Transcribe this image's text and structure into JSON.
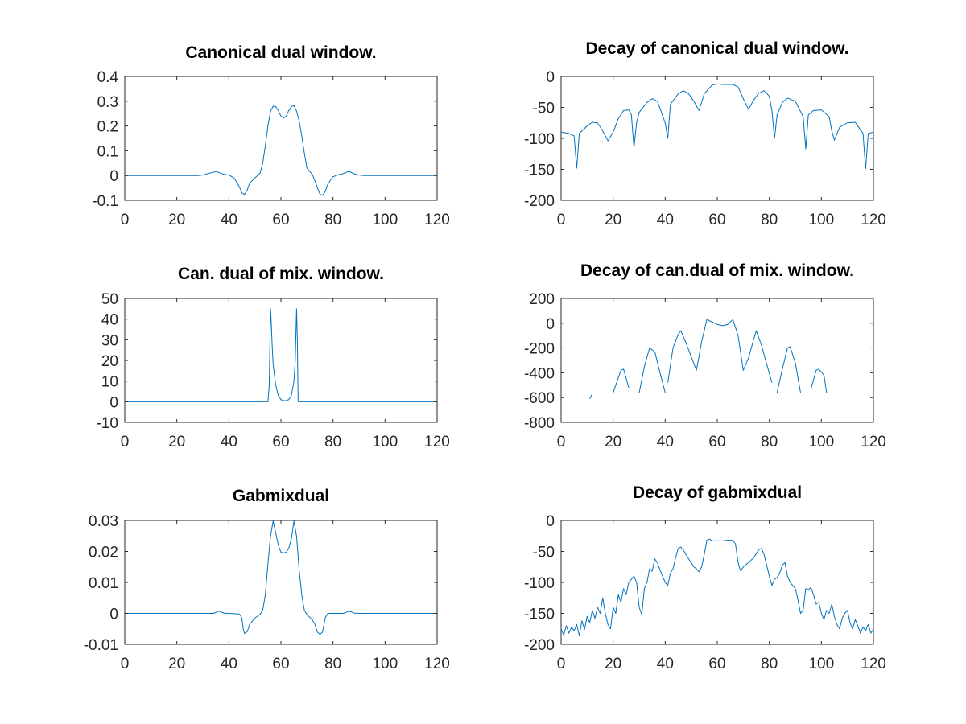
{
  "figure": {
    "background": "#ffffff",
    "line_color": "#0072bd",
    "axis_color": "#262626"
  },
  "chart_data": [
    {
      "type": "line",
      "title": "Canonical dual window.",
      "xlim": [
        0,
        120
      ],
      "ylim": [
        -0.1,
        0.4
      ],
      "xticks": [
        0,
        20,
        40,
        60,
        80,
        100,
        120
      ],
      "xtick_labels": [
        "0",
        "20",
        "40",
        "60",
        "80",
        "100",
        "120"
      ],
      "yticks": [
        -0.1,
        0,
        0.1,
        0.2,
        0.3,
        0.4
      ],
      "ytick_labels": [
        "-0.1",
        "0",
        "0.1",
        "0.2",
        "0.3",
        "0.4"
      ],
      "series": [
        {
          "x": [
            0,
            10,
            20,
            28,
            30,
            32,
            34,
            35,
            36,
            38,
            40,
            42,
            44,
            45,
            46,
            47,
            48,
            50,
            52,
            53,
            54,
            55,
            56,
            57,
            58,
            59,
            60,
            61,
            62,
            63,
            64,
            65,
            66,
            67,
            68,
            69,
            70,
            72,
            73,
            74,
            75,
            76,
            77,
            78,
            80,
            82,
            84,
            85,
            86,
            87,
            88,
            90,
            92,
            94,
            100,
            110,
            120
          ],
          "y": [
            0,
            0,
            0,
            0,
            0.002,
            0.008,
            0.013,
            0.016,
            0.013,
            0.005,
            0.002,
            -0.01,
            -0.045,
            -0.07,
            -0.077,
            -0.06,
            -0.03,
            -0.01,
            0.01,
            0.05,
            0.12,
            0.2,
            0.26,
            0.28,
            0.278,
            0.262,
            0.24,
            0.232,
            0.24,
            0.262,
            0.278,
            0.282,
            0.26,
            0.22,
            0.16,
            0.09,
            0.03,
            0.005,
            -0.02,
            -0.05,
            -0.075,
            -0.08,
            -0.065,
            -0.035,
            -0.005,
            0.003,
            0.008,
            0.013,
            0.016,
            0.013,
            0.007,
            0.002,
            0,
            0,
            0,
            0,
            0
          ]
        }
      ]
    },
    {
      "type": "line",
      "title": "Decay of canonical dual window.",
      "xlim": [
        0,
        120
      ],
      "ylim": [
        -200,
        0
      ],
      "xticks": [
        0,
        20,
        40,
        60,
        80,
        100,
        120
      ],
      "xtick_labels": [
        "0",
        "20",
        "40",
        "60",
        "80",
        "100",
        "120"
      ],
      "yticks": [
        -200,
        -150,
        -100,
        -50,
        0
      ],
      "ytick_labels": [
        "-200",
        "-150",
        "-100",
        "-50",
        "0"
      ],
      "series": [
        {
          "x": [
            0,
            3,
            5,
            6,
            7,
            10,
            12,
            14,
            16,
            18,
            20,
            22,
            24,
            26,
            27,
            28,
            29,
            30,
            33,
            35,
            37,
            40,
            41,
            42,
            45,
            47,
            49,
            51,
            53,
            55,
            58,
            60,
            62,
            64,
            66,
            68,
            70,
            72,
            74,
            76,
            78,
            80,
            81,
            82,
            83,
            85,
            87,
            90,
            93,
            94,
            95,
            97,
            100,
            103,
            104,
            105,
            107,
            110,
            113,
            115,
            116,
            117,
            118,
            120
          ],
          "y": [
            -90,
            -92,
            -96,
            -148,
            -92,
            -80,
            -74,
            -75,
            -88,
            -104,
            -90,
            -68,
            -55,
            -54,
            -62,
            -115,
            -75,
            -58,
            -42,
            -36,
            -40,
            -75,
            -100,
            -45,
            -28,
            -23,
            -28,
            -40,
            -55,
            -28,
            -14,
            -12,
            -13,
            -13,
            -13,
            -17,
            -36,
            -53,
            -38,
            -27,
            -23,
            -32,
            -55,
            -100,
            -62,
            -42,
            -35,
            -40,
            -65,
            -117,
            -62,
            -55,
            -54,
            -65,
            -88,
            -103,
            -82,
            -75,
            -74,
            -86,
            -92,
            -149,
            -92,
            -90
          ]
        }
      ]
    },
    {
      "type": "line",
      "title": "Can. dual of mix. window.",
      "xlim": [
        0,
        120
      ],
      "ylim": [
        -10,
        50
      ],
      "xticks": [
        0,
        20,
        40,
        60,
        80,
        100,
        120
      ],
      "xtick_labels": [
        "0",
        "20",
        "40",
        "60",
        "80",
        "100",
        "120"
      ],
      "yticks": [
        -10,
        0,
        10,
        20,
        30,
        40,
        50
      ],
      "ytick_labels": [
        "-10",
        "0",
        "10",
        "20",
        "30",
        "40",
        "50"
      ],
      "series": [
        {
          "x": [
            0,
            20,
            40,
            55,
            55.5,
            56,
            56.3,
            56.6,
            57,
            58,
            59,
            60,
            61,
            62,
            63,
            64,
            65,
            65.5,
            66,
            66.3,
            66.6,
            67,
            80,
            100,
            120
          ],
          "y": [
            0,
            0,
            0,
            0,
            8,
            45,
            38,
            28,
            18,
            8,
            3,
            1,
            0.5,
            0.5,
            1,
            3,
            10,
            20,
            45,
            30,
            0,
            0,
            0,
            0,
            0
          ]
        }
      ]
    },
    {
      "type": "line",
      "title": "Decay of can.dual of mix. window.",
      "xlim": [
        0,
        120
      ],
      "ylim": [
        -800,
        200
      ],
      "xticks": [
        0,
        20,
        40,
        60,
        80,
        100,
        120
      ],
      "xtick_labels": [
        "0",
        "20",
        "40",
        "60",
        "80",
        "100",
        "120"
      ],
      "yticks": [
        -800,
        -600,
        -400,
        -200,
        0,
        200
      ],
      "ytick_labels": [
        "-800",
        "-600",
        "-400",
        "-200",
        "0",
        "200"
      ],
      "series": [
        {
          "x": [
            11,
            12
          ],
          "y": [
            -610,
            -570
          ]
        },
        {
          "x": [
            20,
            22,
            23,
            24,
            26
          ],
          "y": [
            -560,
            -440,
            -380,
            -370,
            -520
          ]
        },
        {
          "x": [
            30,
            32,
            34,
            36,
            38,
            40
          ],
          "y": [
            -560,
            -350,
            -200,
            -230,
            -400,
            -560
          ]
        },
        {
          "x": [
            41,
            43,
            45,
            46,
            48,
            50,
            52,
            54,
            56,
            58,
            60,
            62,
            64,
            66,
            68,
            70,
            72,
            74,
            75,
            77,
            79,
            81
          ],
          "y": [
            -480,
            -200,
            -90,
            -60,
            -160,
            -270,
            -380,
            -150,
            30,
            10,
            -10,
            -20,
            -10,
            30,
            -100,
            -380,
            -280,
            -130,
            -60,
            -180,
            -330,
            -480
          ]
        },
        {
          "x": [
            83,
            85,
            87,
            88,
            90,
            92
          ],
          "y": [
            -560,
            -370,
            -200,
            -190,
            -320,
            -560
          ]
        },
        {
          "x": [
            96,
            98,
            99,
            101,
            102
          ],
          "y": [
            -530,
            -380,
            -370,
            -420,
            -560
          ]
        }
      ]
    },
    {
      "type": "line",
      "title": "Gabmixdual",
      "xlim": [
        0,
        120
      ],
      "ylim": [
        -0.01,
        0.03
      ],
      "xticks": [
        0,
        20,
        40,
        60,
        80,
        100,
        120
      ],
      "xtick_labels": [
        "0",
        "20",
        "40",
        "60",
        "80",
        "100",
        "120"
      ],
      "yticks": [
        -0.01,
        0,
        0.01,
        0.02,
        0.03
      ],
      "ytick_labels": [
        "-0.01",
        "0",
        "0.01",
        "0.02",
        "0.03"
      ],
      "series": [
        {
          "x": [
            0,
            20,
            34,
            35,
            36,
            37,
            38,
            40,
            44,
            45,
            45.5,
            46,
            47,
            48,
            50,
            52,
            53,
            54,
            55,
            56,
            57,
            58,
            59,
            60,
            61,
            62,
            63,
            64,
            65,
            66,
            67,
            68,
            69,
            70,
            72,
            73,
            74,
            75,
            76,
            77,
            78,
            80,
            84,
            85,
            86,
            87,
            88,
            90,
            100,
            120
          ],
          "y": [
            0,
            0,
            0,
            0.0003,
            0.0007,
            0.0004,
            0.0001,
            0,
            -0.0002,
            -0.0015,
            -0.005,
            -0.0065,
            -0.006,
            -0.0035,
            -0.0015,
            -0.0003,
            0.001,
            0.006,
            0.016,
            0.025,
            0.0298,
            0.026,
            0.022,
            0.0197,
            0.0195,
            0.0197,
            0.021,
            0.024,
            0.0298,
            0.025,
            0.014,
            0.006,
            0.001,
            -0.0004,
            -0.002,
            -0.0035,
            -0.006,
            -0.0068,
            -0.006,
            -0.0015,
            0,
            0,
            0,
            0.0003,
            0.0007,
            0.0005,
            0.0001,
            0,
            0,
            0
          ]
        }
      ]
    },
    {
      "type": "line",
      "title": "Decay of gabmixdual",
      "xlim": [
        0,
        120
      ],
      "ylim": [
        -200,
        0
      ],
      "xticks": [
        0,
        20,
        40,
        60,
        80,
        100,
        120
      ],
      "xtick_labels": [
        "0",
        "20",
        "40",
        "60",
        "80",
        "100",
        "120"
      ],
      "yticks": [
        -200,
        -150,
        -100,
        -50,
        0
      ],
      "ytick_labels": [
        "-200",
        "-150",
        "-100",
        "-50",
        "0"
      ],
      "series": [
        {
          "x": [
            0,
            1,
            2,
            3,
            4,
            5,
            6,
            7,
            8,
            9,
            10,
            11,
            12,
            13,
            14,
            15,
            16,
            17,
            18,
            19,
            20,
            21,
            22,
            23,
            24,
            25,
            26,
            27,
            28,
            29,
            30,
            31,
            32,
            33,
            34,
            35,
            36,
            37,
            38,
            39,
            40,
            41,
            42,
            43,
            44,
            45,
            46,
            47,
            48,
            49,
            50,
            51,
            52,
            53,
            54,
            55,
            56,
            57,
            58,
            60,
            62,
            64,
            66,
            67,
            68,
            69,
            70,
            72,
            74,
            76,
            77,
            78,
            80,
            81,
            82,
            83,
            84,
            85,
            86,
            87,
            88,
            89,
            90,
            91,
            92,
            93,
            94,
            95,
            96,
            97,
            98,
            99,
            100,
            101,
            102,
            103,
            104,
            105,
            106,
            107,
            108,
            109,
            110,
            111,
            112,
            113,
            114,
            115,
            116,
            117,
            118,
            119,
            120
          ],
          "y": [
            -175,
            -185,
            -170,
            -182,
            -172,
            -178,
            -168,
            -186,
            -162,
            -176,
            -155,
            -165,
            -145,
            -158,
            -140,
            -150,
            -125,
            -150,
            -168,
            -175,
            -140,
            -150,
            -120,
            -132,
            -110,
            -120,
            -100,
            -95,
            -90,
            -100,
            -140,
            -152,
            -110,
            -100,
            -78,
            -82,
            -62,
            -68,
            -80,
            -90,
            -100,
            -105,
            -85,
            -78,
            -60,
            -45,
            -43,
            -48,
            -55,
            -62,
            -68,
            -75,
            -78,
            -83,
            -75,
            -55,
            -32,
            -30,
            -33,
            -33,
            -33,
            -32,
            -32,
            -38,
            -68,
            -82,
            -75,
            -68,
            -60,
            -47,
            -45,
            -55,
            -90,
            -105,
            -95,
            -92,
            -85,
            -72,
            -68,
            -90,
            -100,
            -105,
            -110,
            -128,
            -150,
            -145,
            -110,
            -112,
            -108,
            -120,
            -135,
            -132,
            -150,
            -160,
            -145,
            -150,
            -135,
            -155,
            -168,
            -175,
            -158,
            -150,
            -145,
            -165,
            -175,
            -160,
            -170,
            -182,
            -172,
            -178,
            -168,
            -182,
            -175
          ]
        }
      ]
    }
  ]
}
